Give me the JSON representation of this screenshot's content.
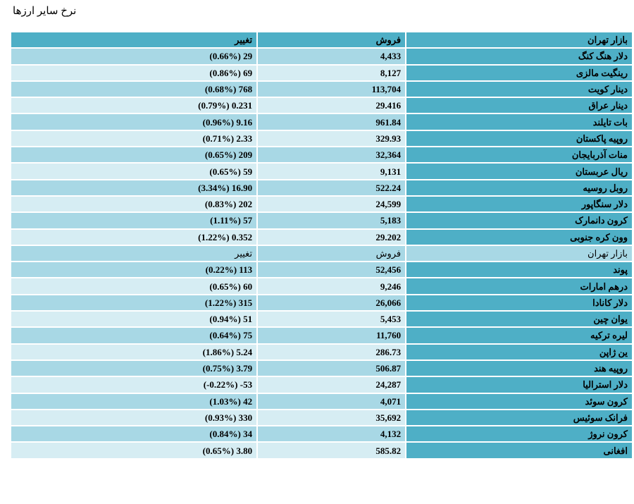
{
  "page": {
    "title": "نرخ سایر ارزها"
  },
  "header": {
    "market": "بازار تهران",
    "sell": "فروش",
    "change": "تغییر"
  },
  "group1": [
    {
      "name": "دلار هنگ کنگ",
      "sell": "4,433",
      "change": "(0.66%) 29"
    },
    {
      "name": "رینگیت مالزی",
      "sell": "8,127",
      "change": "(0.86%) 69"
    },
    {
      "name": "دینار کویت",
      "sell": "113,704",
      "change": "(0.68%) 768"
    },
    {
      "name": "دینار عراق",
      "sell": "29.416",
      "change": "(0.79%) 0.231"
    },
    {
      "name": "بات تایلند",
      "sell": "961.84",
      "change": "(0.96%) 9.16"
    },
    {
      "name": "روپیه پاکستان",
      "sell": "329.93",
      "change": "(0.71%) 2.33"
    },
    {
      "name": "منات آذربایجان",
      "sell": "32,364",
      "change": "(0.65%) 209"
    },
    {
      "name": "ریال عربستان",
      "sell": "9,131",
      "change": "(0.65%) 59"
    },
    {
      "name": "روبل روسیه",
      "sell": "522.24",
      "change": "(3.34%) 16.90"
    },
    {
      "name": "دلار سنگاپور",
      "sell": "24,599",
      "change": "(0.83%) 202"
    },
    {
      "name": "کرون دانمارک",
      "sell": "5,183",
      "change": "(1.11%) 57"
    },
    {
      "name": "وون کره جنوبی",
      "sell": "29.202",
      "change": "(1.22%) 0.352"
    }
  ],
  "subheader": {
    "market": "بازار تهران",
    "sell": "فروش",
    "change": "تغییر"
  },
  "group2": [
    {
      "name": "پوند",
      "sell": "52,456",
      "change": "(0.22%) 113"
    },
    {
      "name": "درهم امارات",
      "sell": "9,246",
      "change": "(0.65%) 60"
    },
    {
      "name": "دلار کانادا",
      "sell": "26,066",
      "change": "(1.22%) 315"
    },
    {
      "name": "یوان چین",
      "sell": "5,453",
      "change": "(0.94%) 51"
    },
    {
      "name": "لیره ترکیه",
      "sell": "11,760",
      "change": "(0.64%) 75"
    },
    {
      "name": "ین ژاپن",
      "sell": "286.73",
      "change": "(1.86%) 5.24"
    },
    {
      "name": "روپیه هند",
      "sell": "506.87",
      "change": "(0.75%) 3.79"
    },
    {
      "name": "دلار استرالیا",
      "sell": "24,287",
      "change": "(-0.22%) -53"
    },
    {
      "name": "کرون سوئد",
      "sell": "4,071",
      "change": "(1.03%) 42"
    },
    {
      "name": "فرانک سوئیس",
      "sell": "35,692",
      "change": "(0.93%) 330"
    },
    {
      "name": "کرون نروژ",
      "sell": "4,132",
      "change": "(0.84%) 34"
    },
    {
      "name": "افغانی",
      "sell": "585.82",
      "change": "(0.65%) 3.80"
    }
  ]
}
